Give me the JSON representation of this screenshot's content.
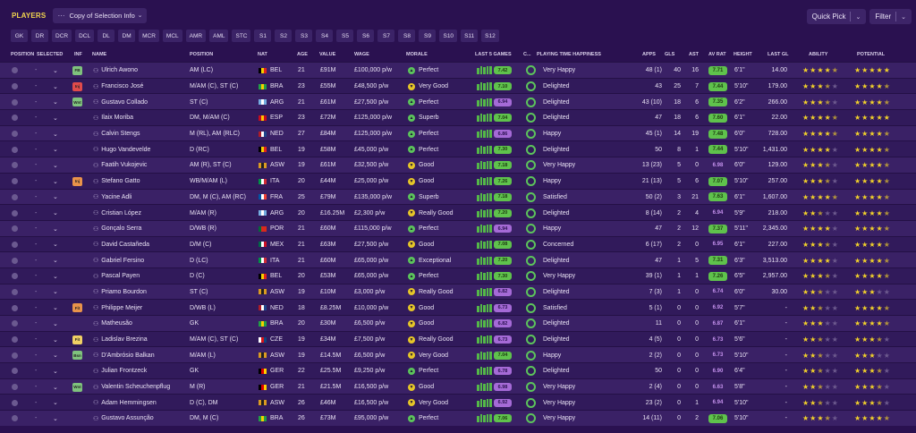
{
  "header": {
    "title": "PLAYERS",
    "view_select": "Copy of Selection Info",
    "quick_pick": "Quick Pick",
    "filter": "Filter"
  },
  "position_tabs": [
    "GK",
    "DR",
    "DCR",
    "DCL",
    "DL",
    "DM",
    "MCR",
    "MCL",
    "AMR",
    "AML",
    "STC",
    "S1",
    "S2",
    "S3",
    "S4",
    "S5",
    "S6",
    "S7",
    "S8",
    "S9",
    "S10",
    "S11",
    "S12"
  ],
  "columns": {
    "position": "POSITION",
    "selected": "SELECTED",
    "inf": "INF",
    "name": "NAME",
    "pos": "POSITION",
    "nat": "NAT",
    "age": "AGE",
    "value": "VALUE",
    "wage": "WAGE",
    "morale": "MORALE",
    "last5": "LAST 5 GAMES",
    "c": "C...",
    "pth": "PLAYING TIME HAPPINESS",
    "apps": "APPS",
    "gls": "GLS",
    "ast": "AST",
    "avrat": "AV RAT",
    "height": "HEIGHT",
    "lastgl": "LAST GL",
    "ability": "ABILITY",
    "potential": "POTENTIAL"
  },
  "colors": {
    "morale_perfect": "#5cc45b",
    "morale_good": "#e6c628",
    "bar_green": "#54b848",
    "rating_green": "#5fc24c",
    "rating_purple": "#a56ad6"
  },
  "players": [
    {
      "inf": "FB",
      "inf_color": "#7fc27d",
      "name": "Ulrich Awono",
      "pos": "AM (LC)",
      "nat": "BEL",
      "age": "21",
      "value": "£91M",
      "wage": "£100,000 p/w",
      "morale": "Perfect",
      "morale_type": "perfect",
      "rating": "7.42",
      "rating_type": "green",
      "pth": "Very Happy",
      "apps": "48 (1)",
      "gls": "40",
      "ast": "16",
      "avrat": "7.71",
      "avrat_type": "green",
      "height": "6'1\"",
      "lastgl": "14.00",
      "ability": 4.5,
      "potential": 5
    },
    {
      "inf": "Inj",
      "inf_color": "#e04b4b",
      "name": "Francisco José",
      "pos": "M/AM (C), ST (C)",
      "nat": "BRA",
      "age": "23",
      "value": "£55M",
      "wage": "£48,500 p/w",
      "morale": "Very Good",
      "morale_type": "good",
      "rating": "7.10",
      "rating_type": "green",
      "pth": "Delighted",
      "apps": "43",
      "gls": "25",
      "ast": "7",
      "avrat": "7.44",
      "avrat_type": "green",
      "height": "5'10\"",
      "lastgl": "179.00",
      "ability": 3.5,
      "potential": 4.5
    },
    {
      "inf": "Wnt",
      "inf_color": "#7fc27d",
      "name": "Gustavo Collado",
      "pos": "ST (C)",
      "nat": "ARG",
      "age": "21",
      "value": "£61M",
      "wage": "£27,500 p/w",
      "morale": "Perfect",
      "morale_type": "perfect",
      "rating": "6.94",
      "rating_type": "purple",
      "pth": "Delighted",
      "apps": "43 (10)",
      "gls": "18",
      "ast": "6",
      "avrat": "7.35",
      "avrat_type": "green",
      "height": "6'2\"",
      "lastgl": "266.00",
      "ability": 3.5,
      "potential": 4.5
    },
    {
      "inf": "",
      "inf_color": "",
      "name": "Ilaix Moriba",
      "pos": "DM, M/AM (C)",
      "nat": "ESP",
      "age": "23",
      "value": "£72M",
      "wage": "£125,000 p/w",
      "morale": "Superb",
      "morale_type": "perfect",
      "rating": "7.04",
      "rating_type": "green",
      "pth": "Delighted",
      "apps": "47",
      "gls": "18",
      "ast": "6",
      "avrat": "7.60",
      "avrat_type": "green",
      "height": "6'1\"",
      "lastgl": "22.00",
      "ability": 4.5,
      "potential": 5
    },
    {
      "inf": "",
      "inf_color": "",
      "name": "Calvin Stengs",
      "pos": "M (RL), AM (RLC)",
      "nat": "NED",
      "age": "27",
      "value": "£84M",
      "wage": "£125,000 p/w",
      "morale": "Perfect",
      "morale_type": "perfect",
      "rating": "6.86",
      "rating_type": "purple",
      "pth": "Happy",
      "apps": "45 (1)",
      "gls": "14",
      "ast": "19",
      "avrat": "7.48",
      "avrat_type": "green",
      "height": "6'0\"",
      "lastgl": "728.00",
      "ability": 4.5,
      "potential": 4.5
    },
    {
      "inf": "",
      "inf_color": "",
      "name": "Hugo Vandevelde",
      "pos": "D (RC)",
      "nat": "BEL",
      "age": "19",
      "value": "£58M",
      "wage": "£45,000 p/w",
      "morale": "Perfect",
      "morale_type": "perfect",
      "rating": "7.30",
      "rating_type": "green",
      "pth": "Delighted",
      "apps": "50",
      "gls": "8",
      "ast": "1",
      "avrat": "7.44",
      "avrat_type": "green",
      "height": "5'10\"",
      "lastgl": "1,431.00",
      "ability": 4,
      "potential": 4.5
    },
    {
      "inf": "",
      "inf_color": "",
      "name": "Faatih Vukojevic",
      "pos": "AM (R), ST (C)",
      "nat": "ASW",
      "age": "19",
      "value": "£61M",
      "wage": "£32,500 p/w",
      "morale": "Good",
      "morale_type": "good",
      "rating": "7.18",
      "rating_type": "green",
      "pth": "Very Happy",
      "apps": "13 (23)",
      "gls": "5",
      "ast": "0",
      "avrat": "6.98",
      "avrat_type": "purple",
      "height": "6'0\"",
      "lastgl": "129.00",
      "ability": 3.5,
      "potential": 4.5
    },
    {
      "inf": "Inj",
      "inf_color": "#e8934a",
      "name": "Stefano Gatto",
      "pos": "WB/M/AM (L)",
      "nat": "ITA",
      "age": "20",
      "value": "£44M",
      "wage": "£25,000 p/w",
      "morale": "Good",
      "morale_type": "good",
      "rating": "7.26",
      "rating_type": "green",
      "pth": "Happy",
      "apps": "21 (13)",
      "gls": "5",
      "ast": "6",
      "avrat": "7.07",
      "avrat_type": "green",
      "height": "5'10\"",
      "lastgl": "257.00",
      "ability": 3.5,
      "potential": 4.5
    },
    {
      "inf": "",
      "inf_color": "",
      "name": "Yacine Adli",
      "pos": "DM, M (C), AM (RC)",
      "nat": "FRA",
      "age": "25",
      "value": "£79M",
      "wage": "£135,000 p/w",
      "morale": "Superb",
      "morale_type": "perfect",
      "rating": "7.18",
      "rating_type": "green",
      "pth": "Satisfied",
      "apps": "50 (2)",
      "gls": "3",
      "ast": "21",
      "avrat": "7.63",
      "avrat_type": "green",
      "height": "6'1\"",
      "lastgl": "1,607.00",
      "ability": 4.5,
      "potential": 4.5
    },
    {
      "inf": "",
      "inf_color": "",
      "name": "Cristian López",
      "pos": "M/AM (R)",
      "nat": "ARG",
      "age": "20",
      "value": "£16.25M",
      "wage": "£2,300 p/w",
      "morale": "Really Good",
      "morale_type": "good",
      "rating": "7.20",
      "rating_type": "green",
      "pth": "Delighted",
      "apps": "8 (14)",
      "gls": "2",
      "ast": "4",
      "avrat": "6.94",
      "avrat_type": "purple",
      "height": "5'9\"",
      "lastgl": "218.00",
      "ability": 2.5,
      "potential": 4.5
    },
    {
      "inf": "",
      "inf_color": "",
      "name": "Gonçalo Serra",
      "pos": "D/WB (R)",
      "nat": "POR",
      "age": "21",
      "value": "£60M",
      "wage": "£115,000 p/w",
      "morale": "Perfect",
      "morale_type": "perfect",
      "rating": "6.94",
      "rating_type": "purple",
      "pth": "Happy",
      "apps": "47",
      "gls": "2",
      "ast": "12",
      "avrat": "7.37",
      "avrat_type": "green",
      "height": "5'11\"",
      "lastgl": "2,345.00",
      "ability": 4,
      "potential": 4.5
    },
    {
      "inf": "",
      "inf_color": "",
      "name": "David Castañeda",
      "pos": "D/M (C)",
      "nat": "MEX",
      "age": "21",
      "value": "£63M",
      "wage": "£27,500 p/w",
      "morale": "Good",
      "morale_type": "good",
      "rating": "7.08",
      "rating_type": "green",
      "pth": "Concerned",
      "apps": "6 (17)",
      "gls": "2",
      "ast": "0",
      "avrat": "6.95",
      "avrat_type": "purple",
      "height": "6'1\"",
      "lastgl": "227.00",
      "ability": 3.5,
      "potential": 4.5
    },
    {
      "inf": "",
      "inf_color": "",
      "name": "Gabriel Fersino",
      "pos": "D (LC)",
      "nat": "ITA",
      "age": "21",
      "value": "£60M",
      "wage": "£65,000 p/w",
      "morale": "Exceptional",
      "morale_type": "perfect",
      "rating": "7.20",
      "rating_type": "green",
      "pth": "Delighted",
      "apps": "47",
      "gls": "1",
      "ast": "5",
      "avrat": "7.31",
      "avrat_type": "green",
      "height": "6'3\"",
      "lastgl": "3,513.00",
      "ability": 4,
      "potential": 4.5
    },
    {
      "inf": "",
      "inf_color": "",
      "name": "Pascal Payen",
      "pos": "D (C)",
      "nat": "BEL",
      "age": "20",
      "value": "£53M",
      "wage": "£65,000 p/w",
      "morale": "Perfect",
      "morale_type": "perfect",
      "rating": "7.30",
      "rating_type": "green",
      "pth": "Very Happy",
      "apps": "39 (1)",
      "gls": "1",
      "ast": "1",
      "avrat": "7.26",
      "avrat_type": "green",
      "height": "6'5\"",
      "lastgl": "2,957.00",
      "ability": 3.5,
      "potential": 4.5
    },
    {
      "inf": "",
      "inf_color": "",
      "name": "Priamo Bourdon",
      "pos": "ST (C)",
      "nat": "ASW",
      "age": "19",
      "value": "£10M",
      "wage": "£3,000 p/w",
      "morale": "Really Good",
      "morale_type": "good",
      "rating": "6.82",
      "rating_type": "purple",
      "pth": "Delighted",
      "apps": "7 (3)",
      "gls": "1",
      "ast": "0",
      "avrat": "6.74",
      "avrat_type": "purple",
      "height": "6'0\"",
      "lastgl": "30.00",
      "ability": 2.5,
      "potential": 3
    },
    {
      "inf": "Fit",
      "inf_color": "#e8934a",
      "name": "Philippe Meijer",
      "pos": "D/WB (L)",
      "nat": "NED",
      "age": "18",
      "value": "£8.25M",
      "wage": "£10,000 p/w",
      "morale": "Good",
      "morale_type": "good",
      "rating": "6.73",
      "rating_type": "purple",
      "pth": "Satisfied",
      "apps": "5 (1)",
      "gls": "0",
      "ast": "0",
      "avrat": "6.92",
      "avrat_type": "purple",
      "height": "5'7\"",
      "lastgl": "-",
      "ability": 2.5,
      "potential": 4.5
    },
    {
      "inf": "",
      "inf_color": "",
      "name": "Matheusão",
      "pos": "GK",
      "nat": "BRA",
      "age": "20",
      "value": "£30M",
      "wage": "£6,500 p/w",
      "morale": "Good",
      "morale_type": "good",
      "rating": "6.82",
      "rating_type": "purple",
      "pth": "Delighted",
      "apps": "11",
      "gls": "0",
      "ast": "0",
      "avrat": "6.87",
      "avrat_type": "purple",
      "height": "6'1\"",
      "lastgl": "-",
      "ability": 3,
      "potential": 4.5
    },
    {
      "inf": "Fit",
      "inf_color": "#f0d064",
      "name": "Ladislav Brezina",
      "pos": "M/AM (C), ST (C)",
      "nat": "CZE",
      "age": "19",
      "value": "£34M",
      "wage": "£7,500 p/w",
      "morale": "Really Good",
      "morale_type": "good",
      "rating": "6.73",
      "rating_type": "purple",
      "pth": "Delighted",
      "apps": "4 (5)",
      "gls": "0",
      "ast": "0",
      "avrat": "6.73",
      "avrat_type": "purple",
      "height": "5'6\"",
      "lastgl": "-",
      "ability": 2.5,
      "potential": 3.5
    },
    {
      "inf": "Bsn",
      "inf_color": "#7fc27d",
      "name": "D'Ambrósio Balkan",
      "pos": "M/AM (L)",
      "nat": "ASW",
      "age": "19",
      "value": "£14.5M",
      "wage": "£6,500 p/w",
      "morale": "Very Good",
      "morale_type": "good",
      "rating": "7.04",
      "rating_type": "green",
      "pth": "Happy",
      "apps": "2 (2)",
      "gls": "0",
      "ast": "0",
      "avrat": "6.73",
      "avrat_type": "purple",
      "height": "5'10\"",
      "lastgl": "-",
      "ability": 2.5,
      "potential": 3
    },
    {
      "inf": "",
      "inf_color": "",
      "name": "Julian Frontzeck",
      "pos": "GK",
      "nat": "GER",
      "age": "22",
      "value": "£25.5M",
      "wage": "£9,250 p/w",
      "morale": "Perfect",
      "morale_type": "perfect",
      "rating": "6.78",
      "rating_type": "purple",
      "pth": "Delighted",
      "apps": "50",
      "gls": "0",
      "ast": "0",
      "avrat": "6.90",
      "avrat_type": "purple",
      "height": "6'4\"",
      "lastgl": "-",
      "ability": 2.5,
      "potential": 3.5
    },
    {
      "inf": "Wnt",
      "inf_color": "#7fc27d",
      "name": "Valentin Scheuchenpflug",
      "pos": "M (R)",
      "nat": "GER",
      "age": "21",
      "value": "£21.5M",
      "wage": "£16,500 p/w",
      "morale": "Good",
      "morale_type": "good",
      "rating": "6.98",
      "rating_type": "purple",
      "pth": "Very Happy",
      "apps": "2 (4)",
      "gls": "0",
      "ast": "0",
      "avrat": "6.63",
      "avrat_type": "purple",
      "height": "5'8\"",
      "lastgl": "-",
      "ability": 2.5,
      "potential": 3.5
    },
    {
      "inf": "",
      "inf_color": "",
      "name": "Adam Hemmingsen",
      "pos": "D (C), DM",
      "nat": "ASW",
      "age": "26",
      "value": "£46M",
      "wage": "£16,500 p/w",
      "morale": "Very Good",
      "morale_type": "good",
      "rating": "6.92",
      "rating_type": "purple",
      "pth": "Very Happy",
      "apps": "23 (2)",
      "gls": "0",
      "ast": "1",
      "avrat": "6.94",
      "avrat_type": "purple",
      "height": "5'10\"",
      "lastgl": "-",
      "ability": 2.5,
      "potential": 3.5
    },
    {
      "inf": "",
      "inf_color": "",
      "name": "Gustavo Assunção",
      "pos": "DM, M (C)",
      "nat": "BRA",
      "age": "26",
      "value": "£73M",
      "wage": "£95,000 p/w",
      "morale": "Perfect",
      "morale_type": "perfect",
      "rating": "7.06",
      "rating_type": "green",
      "pth": "Very Happy",
      "apps": "14 (11)",
      "gls": "0",
      "ast": "2",
      "avrat": "7.06",
      "avrat_type": "green",
      "height": "5'10\"",
      "lastgl": "-",
      "ability": 3.5,
      "potential": 4.5
    }
  ]
}
